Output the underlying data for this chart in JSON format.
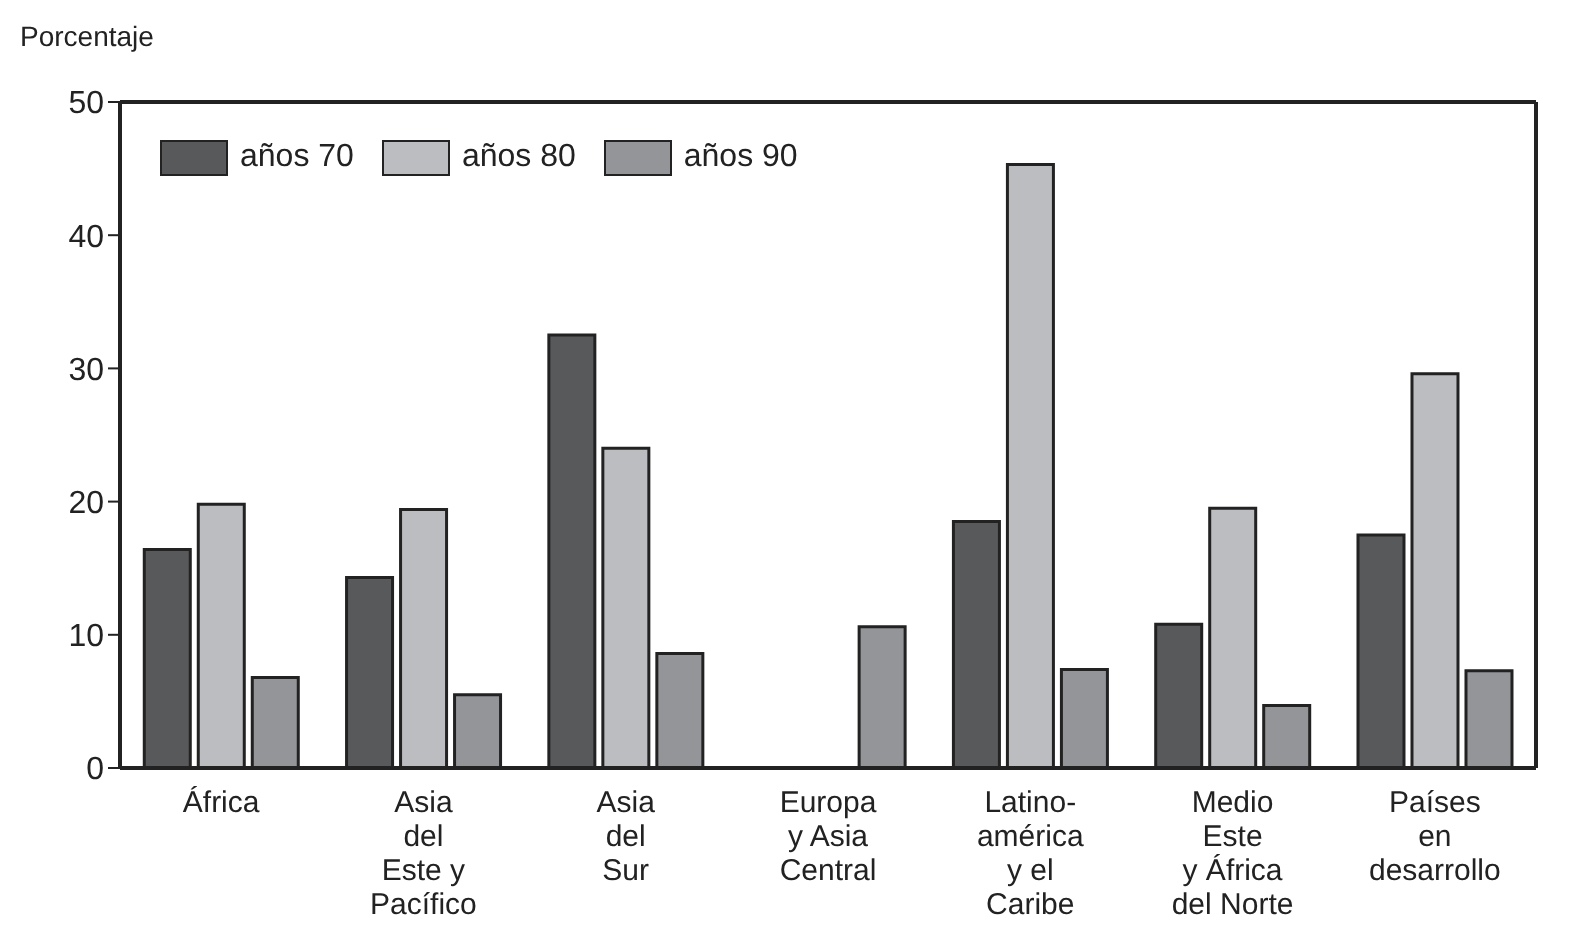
{
  "chart_data": {
    "type": "bar",
    "ylabel": "Porcentaje",
    "categories": [
      "África",
      "Asia\ndel\nEste y\nPacífico",
      "Asia\ndel\nSur",
      "Europa\ny Asia\nCentral",
      "Latino-\namérica\ny el\nCaribe",
      "Medio\nEste\ny África\ndel Norte",
      "Países\nen\ndesarrollo"
    ],
    "series": [
      {
        "name": "años 70",
        "color": "#58595b",
        "values": [
          16.4,
          14.3,
          32.5,
          null,
          18.5,
          10.8,
          17.5
        ]
      },
      {
        "name": "años 80",
        "color": "#bcbdc0",
        "values": [
          19.8,
          19.4,
          24.0,
          null,
          45.3,
          19.5,
          29.6
        ]
      },
      {
        "name": "años 90",
        "color": "#939598",
        "values": [
          6.8,
          5.5,
          8.6,
          10.6,
          7.4,
          4.7,
          7.3
        ]
      }
    ],
    "ylim": [
      0,
      50
    ],
    "yticks": [
      0,
      10,
      20,
      30,
      40,
      50
    ],
    "grid": false,
    "legend": "top left"
  }
}
